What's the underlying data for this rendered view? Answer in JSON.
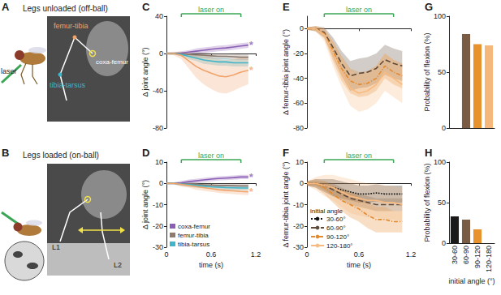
{
  "illustrations": [
    {
      "panel": "A",
      "title": "Legs unloaded (off-ball)",
      "labels": [
        {
          "text": "laser",
          "color": "#222222"
        },
        {
          "text": "femur-tibia",
          "color": "#f0a36a"
        },
        {
          "text": "coxa-femur",
          "color": "#ffffff"
        },
        {
          "text": "tibia-tarsus",
          "color": "#40b5c8"
        }
      ]
    },
    {
      "panel": "B",
      "title": "Legs loaded (on-ball)",
      "labels": [
        {
          "text": "L1",
          "color": "#ffffff"
        },
        {
          "text": "L2",
          "color": "#ffffff"
        }
      ]
    }
  ],
  "chart_data": [
    {
      "panel": "C",
      "type": "line",
      "y_label": "Δ joint angle (°)",
      "tick_labels": "y",
      "grid": false,
      "x": [
        0,
        0.1,
        0.2,
        0.3,
        0.4,
        0.5,
        0.6,
        0.7,
        0.8,
        0.9,
        1.0,
        1.1
      ],
      "xlim": [
        0,
        1.2
      ],
      "xticks": [
        0,
        0.6,
        1.2
      ],
      "ylim": [
        -80,
        40
      ],
      "yticks": [
        -80,
        -40,
        0,
        40
      ],
      "laser": {
        "text": "laser on",
        "start": 0.2,
        "end": 1.0
      },
      "series": [
        {
          "name": "coxa-femur",
          "color": "#8b5fb4",
          "values": [
            0,
            0,
            0.5,
            1.5,
            2.5,
            3.5,
            4.5,
            5.5,
            6,
            7,
            8,
            9
          ],
          "error": [
            1,
            1,
            2,
            2,
            3,
            3,
            3,
            3,
            3,
            3,
            3,
            3
          ]
        },
        {
          "name": "femur-tibia",
          "color": "#8c7b6e",
          "values": [
            0,
            0,
            -0.5,
            -1,
            -1.5,
            -2,
            -2.5,
            -3,
            -3,
            -3.5,
            -4,
            -4
          ],
          "error": [
            1,
            1,
            2,
            2,
            3,
            3,
            3,
            3,
            3,
            3,
            3,
            3
          ]
        },
        {
          "name": "tibia-tarsus",
          "color": "#40b5c8",
          "values": [
            0,
            0,
            -1,
            -3,
            -5,
            -7,
            -8,
            -9,
            -9,
            -10,
            -10,
            -10
          ],
          "error": [
            1,
            1,
            2,
            3,
            3,
            4,
            4,
            4,
            4,
            4,
            4,
            4
          ]
        },
        {
          "name": "femur-tibia",
          "color": "#f0a36a",
          "values": [
            0,
            0,
            -2,
            -8,
            -14,
            -18,
            -21,
            -24,
            -25,
            -23,
            -20,
            -18
          ],
          "error": [
            1,
            2,
            4,
            8,
            12,
            15,
            17,
            18,
            18,
            17,
            16,
            15
          ]
        }
      ],
      "annotations": [
        {
          "text": "*",
          "x": 1.1,
          "y": 9,
          "color": "#8b5fb4"
        },
        {
          "text": "*",
          "x": 1.1,
          "y": -18,
          "color": "#f0a36a"
        }
      ]
    },
    {
      "panel": "D",
      "type": "line",
      "y_label": "Δ joint angle (°)",
      "x_label": "time (s)",
      "grid": false,
      "legend": "lower left",
      "x": [
        0,
        0.1,
        0.2,
        0.3,
        0.4,
        0.5,
        0.6,
        0.7,
        0.8,
        0.9,
        1.0,
        1.1
      ],
      "xlim": [
        0,
        1.2
      ],
      "xticks": [
        0,
        0.6,
        1.2
      ],
      "ylim": [
        -30,
        10
      ],
      "yticks": [
        -30,
        -20,
        -10,
        0,
        10
      ],
      "laser": {
        "text": "laser on",
        "start": 0.2,
        "end": 1.0
      },
      "series": [
        {
          "name": "coxa-femur",
          "color": "#8b5fb4",
          "values": [
            0,
            0,
            0.3,
            0.8,
            1.2,
            1.6,
            2,
            2.3,
            2.5,
            2.7,
            3,
            3
          ],
          "error": [
            0.5,
            0.5,
            0.8,
            1,
            1,
            1,
            1,
            1,
            1,
            1,
            1,
            1
          ]
        },
        {
          "name": "femur-tibia",
          "color": "#8c7b6e",
          "values": [
            0,
            0,
            -0.2,
            -0.3,
            -0.5,
            -0.7,
            -0.8,
            -1,
            -1,
            -1.1,
            -1.2,
            -1.2
          ],
          "error": [
            0.5,
            0.5,
            0.8,
            1,
            1,
            1,
            1,
            1,
            1,
            1,
            1,
            1
          ]
        },
        {
          "name": "tibia-tarsus",
          "color": "#40b5c8",
          "values": [
            0,
            0,
            -0.3,
            -0.6,
            -1,
            -1.3,
            -1.6,
            -1.8,
            -2,
            -2.1,
            -2.2,
            -2.2
          ],
          "error": [
            0.5,
            0.5,
            0.8,
            1,
            1,
            1,
            1,
            1,
            1,
            1,
            1,
            1
          ]
        },
        {
          "name": "femur-tibia",
          "color": "#f0a36a",
          "values": [
            0,
            0,
            -0.5,
            -1,
            -1.5,
            -2,
            -2.5,
            -3,
            -3.3,
            -3.5,
            -3.8,
            -4
          ],
          "error": [
            0.5,
            0.5,
            1,
            1,
            1.5,
            1.5,
            1.5,
            1.5,
            1.5,
            1.5,
            1.5,
            1.5
          ]
        }
      ],
      "annotations": [
        {
          "text": "*",
          "x": 1.1,
          "y": 3,
          "color": "#8b5fb4"
        },
        {
          "text": "*",
          "x": 1.1,
          "y": -4,
          "color": "#f0a36a"
        }
      ]
    },
    {
      "panel": "E",
      "type": "line",
      "y_label": "Δ femur-tibia joint angle (°)",
      "tick_labels": "y",
      "grid": false,
      "x": [
        0,
        0.1,
        0.2,
        0.3,
        0.4,
        0.5,
        0.6,
        0.7,
        0.8,
        0.9,
        1.0,
        1.1
      ],
      "xlim": [
        0,
        1.2
      ],
      "xticks": [
        0,
        0.6,
        1.2
      ],
      "ylim": [
        -80,
        10
      ],
      "yticks": [
        -80,
        -60,
        -40,
        -20,
        0
      ],
      "laser": {
        "text": "laser on",
        "start": 0.2,
        "end": 1.0
      },
      "series": [
        {
          "name": "60-90°",
          "color": "#5e4a3a",
          "line_style": "dashed",
          "values": [
            0,
            0,
            -3,
            -15,
            -28,
            -38,
            -36,
            -35,
            -32,
            -25,
            -28,
            -30
          ],
          "error": [
            1,
            2,
            4,
            8,
            10,
            12,
            12,
            12,
            12,
            12,
            12,
            12
          ]
        },
        {
          "name": "90-120°",
          "color": "#e4892c",
          "line_style": "dashdot",
          "values": [
            0,
            0,
            -4,
            -18,
            -32,
            -42,
            -45,
            -44,
            -40,
            -30,
            -35,
            -38
          ],
          "error": [
            1,
            2,
            4,
            8,
            10,
            10,
            10,
            10,
            10,
            10,
            10,
            10
          ]
        },
        {
          "name": "120-180°",
          "color": "#f7bb82",
          "line_style": "solid",
          "values": [
            0,
            0,
            -5,
            -20,
            -35,
            -48,
            -52,
            -50,
            -45,
            -35,
            -40,
            -45
          ],
          "error": [
            1,
            2,
            5,
            10,
            12,
            14,
            15,
            15,
            15,
            15,
            15,
            15
          ]
        }
      ]
    },
    {
      "panel": "F",
      "type": "line",
      "y_label": "Δ femur-tibia joint angle (°)",
      "x_label": "time (s)",
      "grid": false,
      "legend": "lower left",
      "legend_title": "initial angle",
      "x": [
        0,
        0.1,
        0.2,
        0.3,
        0.4,
        0.5,
        0.6,
        0.7,
        0.8,
        0.9,
        1.0,
        1.1
      ],
      "xlim": [
        0,
        1.2
      ],
      "xticks": [
        0,
        0.6,
        1.2
      ],
      "ylim": [
        -30,
        10
      ],
      "yticks": [
        -30,
        -20,
        -10,
        0,
        10
      ],
      "laser": {
        "text": "laser on",
        "start": 0.2,
        "end": 1.0
      },
      "series": [
        {
          "name": "30-60°",
          "color": "#111111",
          "line_style": "dotted",
          "values": [
            0,
            0,
            -1,
            -2,
            -3,
            -4,
            -5,
            -5,
            -4.5,
            -5,
            -5,
            -5
          ],
          "error": [
            1,
            2,
            3,
            4,
            4,
            4,
            4,
            4,
            4,
            4,
            4,
            4
          ]
        },
        {
          "name": "60-90°",
          "color": "#5e4a3a",
          "line_style": "dashed",
          "values": [
            0,
            0,
            -1,
            -3,
            -5,
            -7,
            -8,
            -9,
            -10,
            -10,
            -10,
            -10
          ],
          "error": [
            1,
            1,
            2,
            3,
            3,
            3,
            3,
            3,
            3,
            3,
            3,
            3
          ]
        },
        {
          "name": "90-120°",
          "color": "#e4892c",
          "line_style": "dashdot",
          "values": [
            0,
            0,
            -2,
            -5,
            -8,
            -10,
            -12,
            -15,
            -17,
            -17,
            -18,
            -18
          ],
          "error": [
            1,
            2,
            3,
            4,
            5,
            6,
            6,
            6,
            6,
            6,
            5,
            5
          ]
        },
        {
          "name": "120-180°",
          "color": "#f7bb82",
          "line_style": "solid",
          "values": [
            0,
            0,
            -1,
            -2,
            -4,
            -6,
            -7,
            -8,
            -8,
            -9,
            -9,
            -10
          ],
          "error": [
            1,
            3,
            5,
            6,
            7,
            8,
            8,
            8,
            8,
            8,
            8,
            8
          ]
        }
      ]
    },
    {
      "panel": "G",
      "type": "bar",
      "y_label": "Probability of flexion (%)",
      "tick_labels": "y",
      "grid": false,
      "categories": [
        "30-60",
        "60-90",
        "90-120",
        "120-180"
      ],
      "values": [
        0,
        84,
        75,
        74
      ],
      "colors": [
        "#1a1a1a",
        "#7a5c45",
        "#e8922e",
        "#f5b87a"
      ],
      "ylim": [
        0,
        100
      ],
      "yticks": [
        0,
        50,
        100
      ]
    },
    {
      "panel": "H",
      "type": "bar",
      "y_label": "Probability of flexion (%)",
      "x_label": "initial angle (°)",
      "grid": false,
      "categories": [
        "30-60",
        "60-90",
        "90-120",
        "120-180"
      ],
      "values": [
        33,
        29,
        17,
        0
      ],
      "colors": [
        "#1a1a1a",
        "#7a5c45",
        "#e8922e",
        "#f5b87a"
      ],
      "ylim": [
        0,
        100
      ],
      "yticks": [
        0,
        50,
        100
      ]
    }
  ]
}
